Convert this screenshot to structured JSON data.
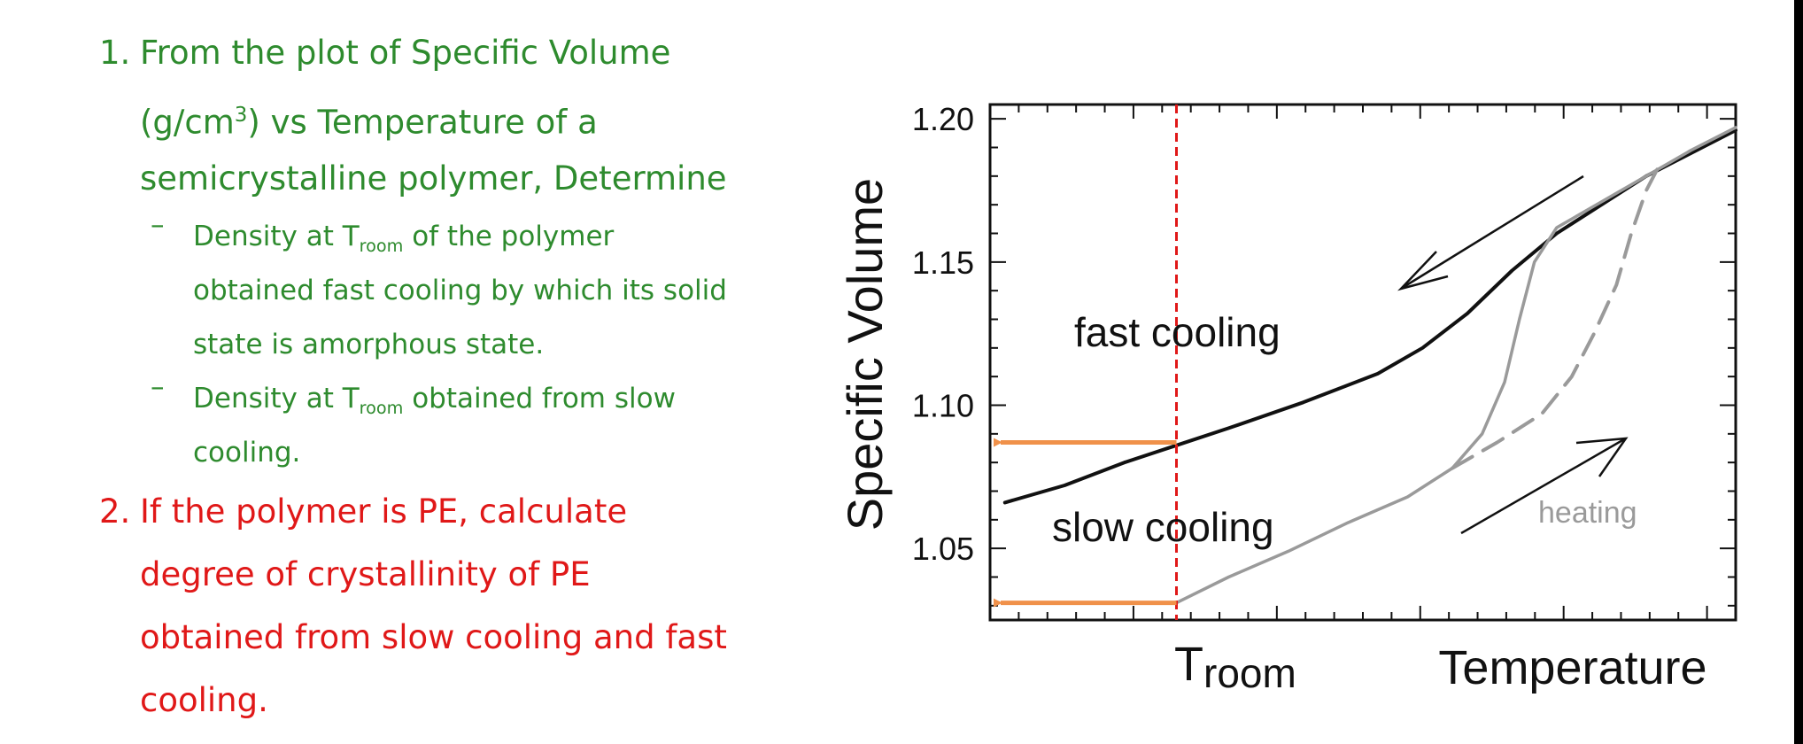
{
  "question1": {
    "number": "1.",
    "line1": "From the plot of Specific Volume",
    "line2_pre": "(g/cm",
    "line2_sup": "3",
    "line2_post": ") vs Temperature of a",
    "line3": "semicrystalline polymer, Determine",
    "bullets": [
      {
        "dash": "–",
        "pre": "Density at T",
        "sub": "room",
        "post": " of the polymer",
        "line2": "obtained fast cooling by which its solid",
        "line3": "state is amorphous state."
      },
      {
        "dash": "–",
        "pre": "Density at T",
        "sub": "room",
        "post": " obtained from slow",
        "line2": "cooling."
      }
    ]
  },
  "question2": {
    "number": "2.",
    "lines": [
      "If the polymer is PE, calculate",
      "degree of crystallinity of PE",
      "obtained from slow cooling and fast",
      "cooling."
    ]
  },
  "chart_data": {
    "type": "line",
    "ylabel": "Specific Volume",
    "xlabel": "Temperature",
    "ylim": [
      1.025,
      1.205
    ],
    "yticks": [
      "1.05",
      "1.10",
      "1.15",
      "1.20"
    ],
    "ytick_values": [
      1.05,
      1.1,
      1.15,
      1.2
    ],
    "xlim": [
      0,
      1
    ],
    "x_marker_label_main": "T",
    "x_marker_label_sub": "room",
    "x_marker_value": 0.25,
    "annotations": [
      "fast cooling",
      "slow cooling",
      "heating"
    ],
    "colors": {
      "fast": "#111111",
      "slow": "#9a9a9a",
      "marker": "#e01818",
      "arrow": "#f0914a"
    },
    "series": [
      {
        "name": "fast cooling",
        "style": "solid-black",
        "x": [
          0.02,
          0.1,
          0.18,
          0.25,
          0.32,
          0.42,
          0.52,
          0.58,
          0.64,
          0.7,
          0.76,
          0.82,
          0.88,
          0.94,
          1.0
        ],
        "y": [
          1.066,
          1.072,
          1.08,
          1.086,
          1.092,
          1.101,
          1.111,
          1.12,
          1.132,
          1.147,
          1.16,
          1.17,
          1.18,
          1.188,
          1.196
        ]
      },
      {
        "name": "slow cooling",
        "style": "solid-gray",
        "x": [
          0.25,
          0.32,
          0.4,
          0.48,
          0.56,
          0.62,
          0.66,
          0.69,
          0.71,
          0.73,
          0.76,
          0.82,
          0.88,
          0.94,
          1.0
        ],
        "y": [
          1.031,
          1.04,
          1.049,
          1.059,
          1.068,
          1.078,
          1.09,
          1.108,
          1.13,
          1.15,
          1.162,
          1.171,
          1.18,
          1.189,
          1.197
        ]
      },
      {
        "name": "heating",
        "style": "dashed-gray",
        "x": [
          0.62,
          0.68,
          0.74,
          0.78,
          0.81,
          0.84,
          0.86,
          0.88,
          0.9
        ],
        "y": [
          1.078,
          1.087,
          1.097,
          1.11,
          1.125,
          1.142,
          1.16,
          1.175,
          1.185
        ]
      }
    ],
    "densities_read": [
      {
        "label": "fast cooling at T room",
        "value": 1.087
      },
      {
        "label": "slow cooling at T room",
        "value": 1.031
      }
    ]
  }
}
